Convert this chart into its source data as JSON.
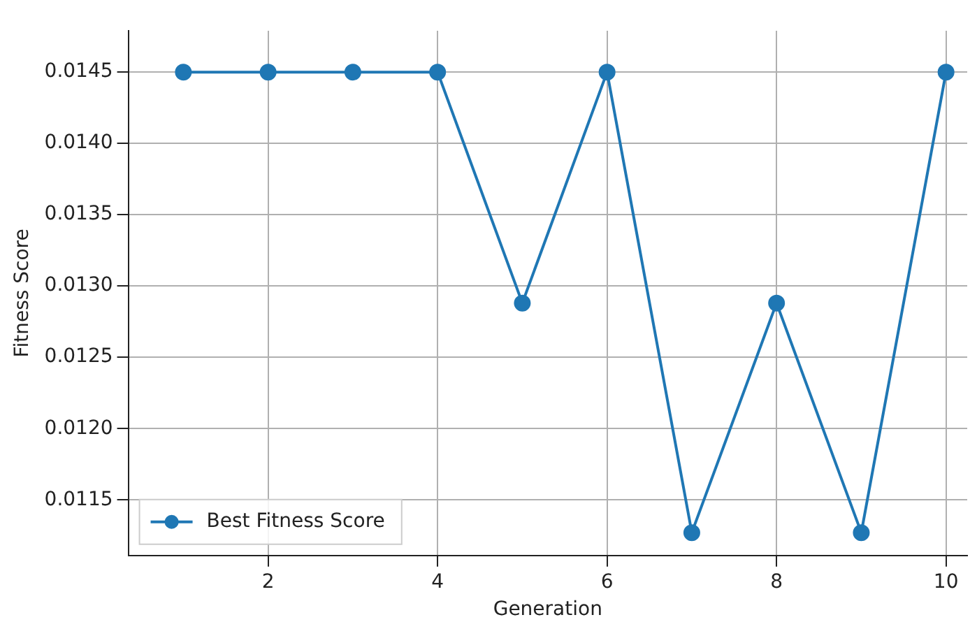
{
  "chart_data": {
    "type": "line",
    "xlabel": "Generation",
    "ylabel": "Fitness Score",
    "x": [
      1,
      2,
      3,
      4,
      5,
      6,
      7,
      8,
      9,
      10
    ],
    "series": [
      {
        "name": "Best Fitness Score",
        "color": "#1f77b4",
        "values": [
          0.0145,
          0.0145,
          0.0145,
          0.0145,
          0.01288,
          0.0145,
          0.01127,
          0.01288,
          0.01127,
          0.0145
        ]
      }
    ],
    "xlim": [
      0.35,
      10.25
    ],
    "xticks": [
      2,
      4,
      6,
      8,
      10
    ],
    "ylim": [
      0.01111,
      0.01479
    ],
    "yticks": [
      0.0115,
      {
        "value": 0.012,
        "label": "0.0120"
      },
      0.0125,
      {
        "value": 0.013,
        "label": "0.0130"
      },
      0.0135,
      {
        "value": 0.014,
        "label": "0.0140"
      },
      0.0145
    ],
    "grid": true,
    "legend": "bottom left",
    "marker": "circle",
    "line_style": "solid"
  }
}
